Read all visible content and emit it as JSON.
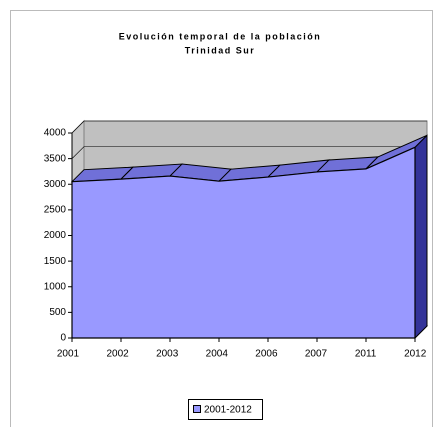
{
  "chart_data": {
    "type": "area3d",
    "title": "Evolución temporal de la población",
    "subtitle": "Trinidad Sur",
    "categories": [
      "2001",
      "2002",
      "2003",
      "2004",
      "2006",
      "2007",
      "2011",
      "2012"
    ],
    "series": [
      {
        "name": "2001-2012",
        "color": "#9999ff",
        "values": [
          3050,
          3100,
          3160,
          3060,
          3140,
          3240,
          3300,
          3720
        ]
      }
    ],
    "ylim": [
      0,
      4000
    ],
    "yticks": [
      0,
      500,
      1000,
      1500,
      2000,
      2500,
      3000,
      3500,
      4000
    ],
    "grid": true,
    "legend": "bottom"
  }
}
